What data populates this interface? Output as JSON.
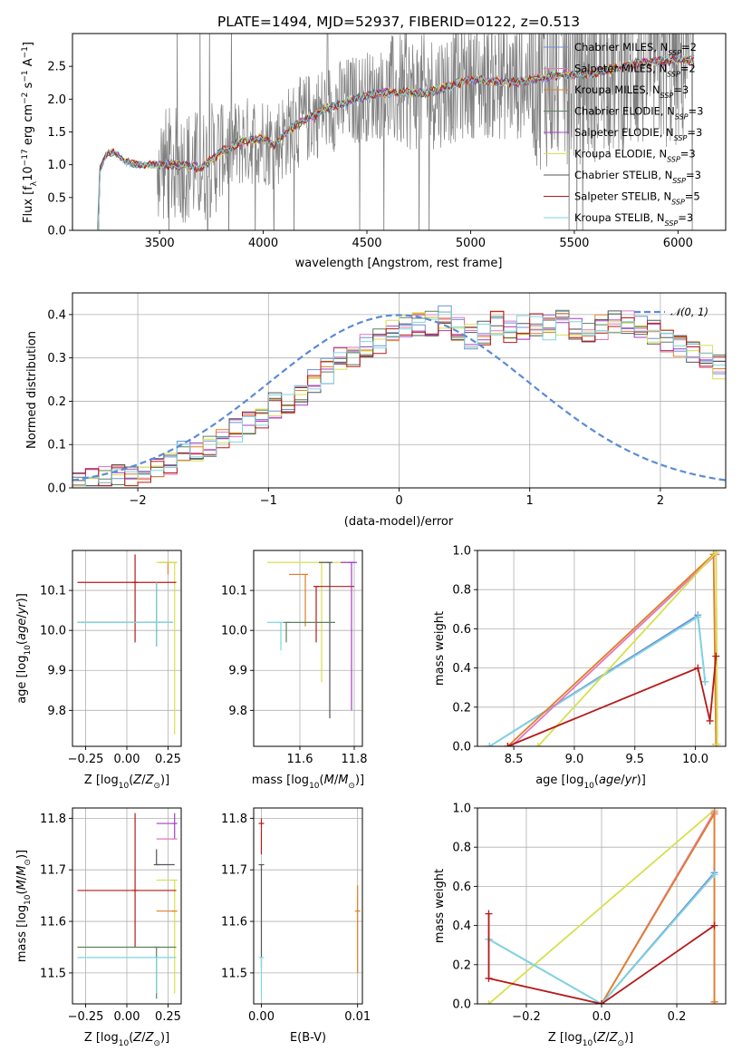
{
  "figure_title": "PLATE=1494, MJD=52937, FIBERID=0122, z=0.513",
  "colors": {
    "Chabrier MILES": "#6f8fd8",
    "Salpeter MILES": "#e377c2",
    "Kroupa MILES": "#e07f24",
    "Chabrier ELODIE": "#5f7f5f",
    "Salpeter ELODIE": "#a43ec4",
    "Kroupa ELODIE": "#d6e04e",
    "Chabrier STELIB": "#555555",
    "Salpeter STELIB": "#b51a1a",
    "Kroupa STELIB": "#7fd6e0",
    "data": "#808080",
    "gauss": "#5b8bd6"
  },
  "chart_data": [
    {
      "id": "spectrum",
      "type": "line",
      "title": "PLATE=1494, MJD=52937, FIBERID=0122, z=0.513",
      "xlabel": "wavelength [Angstrom, rest frame]",
      "ylabel": "Flux [f_λ 10^-17 erg cm^-2 s^-1 A^-1]",
      "ylabel_parts": {
        "a": "Flux [f",
        "b": "λ",
        "c": "10",
        "d": "−17",
        "e": " erg cm",
        "f": "−2",
        "g": " s",
        "h": "−1",
        "i": " A",
        "j": "−1",
        "k": "]"
      },
      "xlim": [
        3080,
        6230
      ],
      "ylim": [
        0,
        3.0
      ],
      "xticks": [
        3500,
        4000,
        4500,
        5000,
        5500,
        6000
      ],
      "yticks": [
        0.0,
        0.5,
        1.0,
        1.5,
        2.0,
        2.5
      ],
      "legend_position": "top-right",
      "legend": [
        {
          "label": "Chabrier MILES, N",
          "sub": "SSP",
          "tail": "=2"
        },
        {
          "label": "Salpeter MILES, N",
          "sub": "SSP",
          "tail": "=2"
        },
        {
          "label": "Kroupa MILES, N",
          "sub": "SSP",
          "tail": "=3"
        },
        {
          "label": "Chabrier ELODIE, N",
          "sub": "SSP",
          "tail": "=3"
        },
        {
          "label": "Salpeter ELODIE, N",
          "sub": "SSP",
          "tail": "=3"
        },
        {
          "label": "Kroupa ELODIE, N",
          "sub": "SSP",
          "tail": "=3"
        },
        {
          "label": "Chabrier STELIB, N",
          "sub": "SSP",
          "tail": "=3"
        },
        {
          "label": "Salpeter STELIB, N",
          "sub": "SSP",
          "tail": "=5"
        },
        {
          "label": "Kroupa STELIB, N",
          "sub": "SSP",
          "tail": "=3"
        }
      ],
      "model_points": [
        [
          3200,
          0
        ],
        [
          3210,
          0.9
        ],
        [
          3240,
          1.15
        ],
        [
          3280,
          1.2
        ],
        [
          3330,
          1.05
        ],
        [
          3400,
          1.0
        ],
        [
          3500,
          1.0
        ],
        [
          3600,
          1.0
        ],
        [
          3700,
          0.95
        ],
        [
          3800,
          1.2
        ],
        [
          3900,
          1.35
        ],
        [
          4000,
          1.4
        ],
        [
          4050,
          1.3
        ],
        [
          4150,
          1.6
        ],
        [
          4300,
          1.85
        ],
        [
          4400,
          1.95
        ],
        [
          4500,
          2.05
        ],
        [
          4600,
          2.1
        ],
        [
          4800,
          2.1
        ],
        [
          4900,
          2.2
        ],
        [
          5000,
          2.3
        ],
        [
          5200,
          2.25
        ],
        [
          5400,
          2.35
        ],
        [
          5600,
          2.4
        ],
        [
          5800,
          2.55
        ],
        [
          6000,
          2.6
        ],
        [
          6080,
          2.6
        ]
      ]
    },
    {
      "id": "residuals",
      "type": "histogram",
      "xlabel": "(data-model)/error",
      "ylabel": "Normed distribution",
      "xlim": [
        -2.5,
        2.5
      ],
      "ylim": [
        0,
        0.45
      ],
      "xticks": [
        -2,
        -1,
        0,
        1,
        2
      ],
      "xticklabels": [
        "−2",
        "−1",
        "0",
        "1",
        "2"
      ],
      "yticks": [
        0.0,
        0.1,
        0.2,
        0.3,
        0.4
      ],
      "legend_label": "𝒩(0, 1)",
      "legend_position": "top-right",
      "bin_width": 0.1,
      "bin_start": -2.5,
      "base_values": [
        0.01,
        0.02,
        0.02,
        0.03,
        0.03,
        0.04,
        0.05,
        0.06,
        0.08,
        0.09,
        0.1,
        0.12,
        0.13,
        0.15,
        0.16,
        0.19,
        0.2,
        0.22,
        0.25,
        0.27,
        0.3,
        0.31,
        0.33,
        0.34,
        0.36,
        0.37,
        0.38,
        0.38,
        0.39,
        0.37,
        0.35,
        0.36,
        0.38,
        0.36,
        0.37,
        0.38,
        0.37,
        0.38,
        0.37,
        0.36,
        0.37,
        0.38,
        0.38,
        0.37,
        0.36,
        0.34,
        0.33,
        0.32,
        0.3,
        0.28,
        0.27,
        0.25,
        0.22,
        0.2,
        0.19,
        0.17,
        0.16,
        0.14,
        0.12,
        0.11,
        0.1,
        0.08,
        0.07,
        0.06,
        0.06,
        0.05,
        0.04,
        0.04,
        0.03,
        0.03
      ]
    },
    {
      "id": "age-vs-Z",
      "type": "errorbar",
      "xlabel": "Z [log10(Z/Z⊙)]",
      "ylabel": "age  [log10(age/yr)]",
      "xlim": [
        -0.33,
        0.33
      ],
      "ylim": [
        9.71,
        10.2
      ],
      "xticks": [
        -0.25,
        0.0,
        0.25
      ],
      "xticklabels": [
        "−0.25",
        "0.00",
        "0.25"
      ],
      "yticks": [
        9.8,
        9.9,
        10.0,
        10.1
      ],
      "yticklabels": [
        "9.8",
        "9.9",
        "10.0",
        "10.1"
      ],
      "points": [
        {
          "c": "Kroupa MILES",
          "x": 0.25,
          "xerr": [
            0.05,
            0.05
          ],
          "y": 10.17,
          "yerr": [
            0.03,
            0.0
          ]
        },
        {
          "c": "Kroupa ELODIE",
          "x": 0.29,
          "xerr": [
            0.11,
            0.0
          ],
          "y": 10.17,
          "yerr": [
            0.43,
            0.0
          ]
        },
        {
          "c": "Salpeter STELIB",
          "x": 0.05,
          "xerr": [
            0.35,
            0.25
          ],
          "y": 10.12,
          "yerr": [
            0.15,
            0.07
          ]
        },
        {
          "c": "Chabrier STELIB",
          "x": 0.18,
          "xerr": [
            0.48,
            0.1
          ],
          "y": 10.02,
          "yerr": [
            0.06,
            0.1
          ]
        },
        {
          "c": "Kroupa STELIB",
          "x": 0.18,
          "xerr": [
            0.48,
            0.1
          ],
          "y": 10.02,
          "yerr": [
            0.06,
            0.1
          ]
        }
      ]
    },
    {
      "id": "age-vs-mass",
      "type": "errorbar",
      "xlabel": "mass [log10(M/M⊙)]",
      "xlim": [
        11.43,
        11.83
      ],
      "ylim": [
        9.71,
        10.2
      ],
      "xticks": [
        11.6,
        11.8
      ],
      "yticks": [
        9.8,
        9.9,
        10.0,
        10.1
      ],
      "yticklabels": [
        "9.8",
        "9.9",
        "10.0",
        "10.1"
      ],
      "points": [
        {
          "c": "Kroupa ELODIE",
          "x": 11.68,
          "xerr": [
            0.2,
            0.12
          ],
          "y": 10.17,
          "yerr": [
            0.3,
            0.0
          ]
        },
        {
          "c": "Salpeter ELODIE",
          "x": 11.79,
          "xerr": [
            0.04,
            0.02
          ],
          "y": 10.17,
          "yerr": [
            0.37,
            0.0
          ]
        },
        {
          "c": "Chabrier STELIB",
          "x": 11.71,
          "xerr": [
            0.04,
            0.0
          ],
          "y": 10.17,
          "yerr": [
            0.39,
            0.0
          ]
        },
        {
          "c": "Kroupa MILES",
          "x": 11.62,
          "xerr": [
            0.06,
            0.01
          ],
          "y": 10.14,
          "yerr": [
            0.13,
            0.0
          ]
        },
        {
          "c": "Salpeter STELIB",
          "x": 11.66,
          "xerr": [
            0.0,
            0.14
          ],
          "y": 10.11,
          "yerr": [
            0.14,
            0.0
          ]
        },
        {
          "c": "Chabrier ELODIE",
          "x": 11.55,
          "xerr": [
            0.0,
            0.18
          ],
          "y": 10.02,
          "yerr": [
            0.05,
            0.0
          ]
        },
        {
          "c": "Kroupa STELIB",
          "x": 11.53,
          "xerr": [
            0.05,
            0.0
          ],
          "y": 10.02,
          "yerr": [
            0.07,
            0.0
          ]
        }
      ]
    },
    {
      "id": "mass-weight-vs-age",
      "type": "line",
      "xlabel": "age  [log10(age/yr)]",
      "ylabel": "mass weight",
      "xlim": [
        8.2,
        10.25
      ],
      "ylim": [
        0,
        1.0
      ],
      "xticks": [
        8.5,
        9.0,
        9.5,
        10.0
      ],
      "xticklabels": [
        "8.5",
        "9.0",
        "9.5",
        "10.0"
      ],
      "yticks": [
        0.0,
        0.2,
        0.4,
        0.6,
        0.8,
        1.0
      ],
      "series": [
        {
          "c": "Chabrier MILES",
          "x": [
            8.3,
            10.02,
            10.08
          ],
          "y": [
            0.0,
            0.67,
            0.33
          ]
        },
        {
          "c": "Kroupa STELIB",
          "x": [
            8.3,
            10.02,
            10.08
          ],
          "y": [
            0.0,
            0.66,
            0.33
          ]
        },
        {
          "c": "Salpeter MILES",
          "x": [
            8.48,
            10.17,
            10.18
          ],
          "y": [
            0.0,
            0.98,
            0.01
          ]
        },
        {
          "c": "Kroupa MILES",
          "x": [
            8.45,
            10.15,
            10.17
          ],
          "y": [
            0.0,
            0.98,
            0.01
          ]
        },
        {
          "c": "Kroupa ELODIE",
          "x": [
            8.7,
            10.17,
            10.18
          ],
          "y": [
            0.0,
            0.99,
            0.01
          ]
        },
        {
          "c": "Salpeter STELIB",
          "x": [
            8.45,
            10.02,
            10.12,
            10.17
          ],
          "y": [
            0.0,
            0.4,
            0.13,
            0.46
          ]
        }
      ]
    },
    {
      "id": "mass-vs-Z",
      "type": "errorbar",
      "xlabel": "Z [log10(Z/Z⊙)]",
      "ylabel": "mass [log10(M/M⊙)]",
      "xlim": [
        -0.33,
        0.33
      ],
      "ylim": [
        11.44,
        11.82
      ],
      "xticks": [
        -0.25,
        0.0,
        0.25
      ],
      "xticklabels": [
        "−0.25",
        "0.00",
        "0.25"
      ],
      "yticks": [
        11.5,
        11.6,
        11.7,
        11.8
      ],
      "yticklabels": [
        "11.5",
        "11.6",
        "11.7",
        "11.8"
      ],
      "points": [
        {
          "c": "Salpeter ELODIE",
          "x": 0.29,
          "xerr": [
            0.11,
            0.0
          ],
          "y": 11.79,
          "yerr": [
            0.03,
            0.02
          ]
        },
        {
          "c": "Salpeter MILES",
          "x": 0.29,
          "xerr": [
            0.11,
            0.0
          ],
          "y": 11.76,
          "yerr": [
            0.0,
            0.0
          ]
        },
        {
          "c": "Chabrier STELIB",
          "x": 0.18,
          "xerr": [
            0.0,
            0.11
          ],
          "y": 11.71,
          "yerr": [
            0.0,
            0.03
          ]
        },
        {
          "c": "Kroupa ELODIE",
          "x": 0.29,
          "xerr": [
            0.11,
            0.0
          ],
          "y": 11.68,
          "yerr": [
            0.22,
            0.0
          ]
        },
        {
          "c": "Kroupa MILES",
          "x": 0.29,
          "xerr": [
            0.11,
            0.0
          ],
          "y": 11.62,
          "yerr": [
            0.0,
            0.0
          ]
        },
        {
          "c": "Salpeter STELIB",
          "x": 0.05,
          "xerr": [
            0.35,
            0.25
          ],
          "y": 11.66,
          "yerr": [
            0.11,
            0.15
          ]
        },
        {
          "c": "Chabrier ELODIE",
          "x": 0.18,
          "xerr": [
            0.48,
            0.12
          ],
          "y": 11.55,
          "yerr": [
            0.1,
            0.0
          ]
        },
        {
          "c": "Kroupa STELIB",
          "x": 0.18,
          "xerr": [
            0.48,
            0.12
          ],
          "y": 11.53,
          "yerr": [
            0.07,
            0.0
          ]
        }
      ]
    },
    {
      "id": "mass-vs-EBV",
      "type": "errorbar",
      "xlabel": "E(B-V)",
      "xlim": [
        -0.0008,
        0.0105
      ],
      "ylim": [
        11.44,
        11.82
      ],
      "xticks": [
        0.0,
        0.01
      ],
      "xticklabels": [
        "0.00",
        "0.01"
      ],
      "yticks": [
        11.5,
        11.6,
        11.7,
        11.8
      ],
      "yticklabels": [
        "11.5",
        "11.6",
        "11.7",
        "11.8"
      ],
      "points": [
        {
          "c": "Salpeter STELIB",
          "x": 0.0,
          "y": 11.79,
          "yerr": [
            0.06,
            0.01
          ]
        },
        {
          "c": "Chabrier STELIB",
          "x": 0.0,
          "y": 11.71,
          "yerr": [
            0.2,
            0.0
          ]
        },
        {
          "c": "Kroupa STELIB",
          "x": 0.0,
          "y": 11.53,
          "yerr": [
            0.08,
            0.0
          ]
        },
        {
          "c": "Kroupa MILES",
          "x": 0.01,
          "y": 11.62,
          "yerr": [
            0.12,
            0.05
          ]
        }
      ]
    },
    {
      "id": "mass-weight-vs-Z",
      "type": "line",
      "xlabel": "Z [log10(Z/Z⊙)]",
      "ylabel": "mass weight",
      "xlim": [
        -0.33,
        0.33
      ],
      "ylim": [
        0,
        1.0
      ],
      "xticks": [
        -0.2,
        0.0,
        0.2
      ],
      "xticklabels": [
        "−0.2",
        "0.0",
        "0.2"
      ],
      "yticks": [
        0.0,
        0.2,
        0.4,
        0.6,
        0.8,
        1.0
      ],
      "series": [
        {
          "c": "Kroupa ELODIE",
          "x": [
            -0.3,
            0.3,
            0.3
          ],
          "y": [
            0.0,
            0.99,
            0.01
          ]
        },
        {
          "c": "Salpeter MILES",
          "x": [
            0.0,
            0.3,
            0.3
          ],
          "y": [
            0.0,
            0.98,
            0.01
          ]
        },
        {
          "c": "Kroupa MILES",
          "x": [
            0.0,
            0.3,
            0.3
          ],
          "y": [
            0.0,
            0.97,
            0.01
          ]
        },
        {
          "c": "Chabrier MILES",
          "x": [
            -0.3,
            0.0,
            0.3
          ],
          "y": [
            0.33,
            0.0,
            0.67
          ]
        },
        {
          "c": "Kroupa STELIB",
          "x": [
            -0.3,
            0.0,
            0.3
          ],
          "y": [
            0.33,
            0.0,
            0.66
          ]
        },
        {
          "c": "Salpeter STELIB",
          "x": [
            -0.3,
            -0.3,
            0.0,
            0.3
          ],
          "y": [
            0.46,
            0.13,
            0.0,
            0.4
          ]
        }
      ]
    }
  ]
}
